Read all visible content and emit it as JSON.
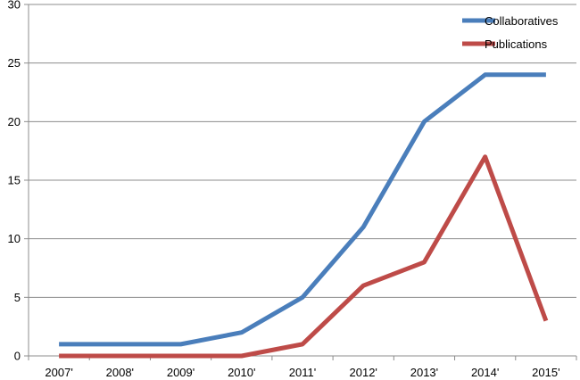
{
  "chart_data": {
    "type": "line",
    "title": "",
    "xlabel": "",
    "ylabel": "",
    "categories": [
      "2007'",
      "2008'",
      "2009'",
      "2010'",
      "2011'",
      "2012'",
      "2013'",
      "2014'",
      "2015'"
    ],
    "ylim": [
      0,
      30
    ],
    "yticks": [
      "0",
      "5",
      "10",
      "15",
      "20",
      "25",
      "30"
    ],
    "grid": true,
    "legend_position": "top-right",
    "series": [
      {
        "name": "Collaboratives",
        "color": "#4a7ebb",
        "values": [
          1,
          1,
          1,
          2,
          5,
          11,
          20,
          24,
          24
        ]
      },
      {
        "name": "Publications",
        "color": "#be4b48",
        "values": [
          0,
          0,
          0,
          0,
          1,
          6,
          8,
          17,
          3
        ]
      }
    ]
  }
}
